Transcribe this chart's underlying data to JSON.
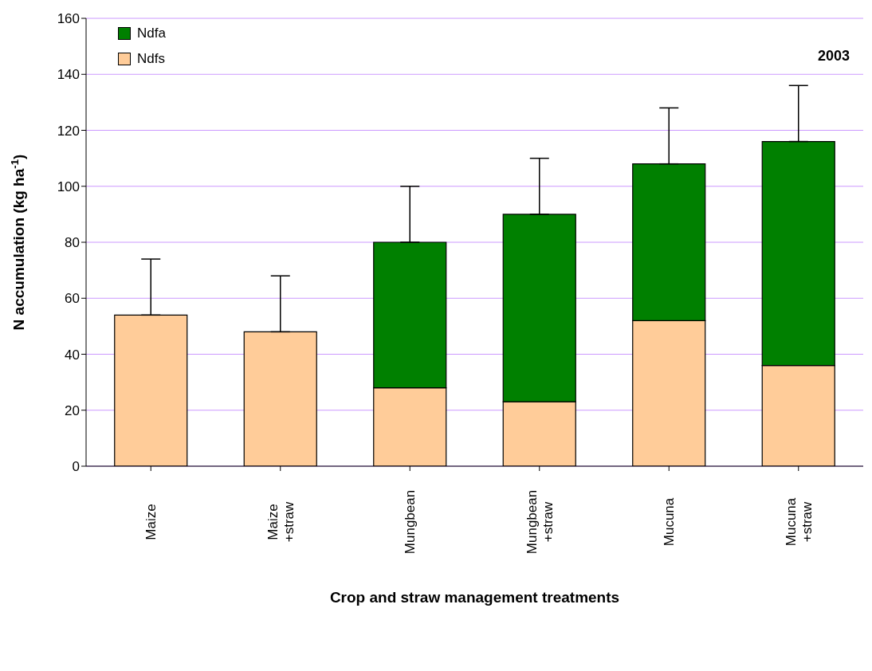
{
  "chart_data": {
    "type": "bar",
    "stacked": true,
    "xlabel": "Crop and straw management treatments",
    "ylabel": "N accumulation (kg ha$^{-1}$)",
    "categories": [
      "Maize",
      "Maize\n+straw",
      "Mungbean",
      "Mungbean\n+straw",
      "Mucuna",
      "Mucuna\n+straw"
    ],
    "series": [
      {
        "name": "Ndfs",
        "color": "#ffcc99",
        "values": [
          54,
          48,
          28,
          23,
          52,
          36
        ],
        "errors": [
          [
            54,
            74
          ],
          [
            48,
            68
          ],
          null,
          null,
          null,
          null
        ]
      },
      {
        "name": "Ndfa",
        "color": "#008000",
        "values": [
          null,
          null,
          52,
          67,
          56,
          80
        ],
        "errors": [
          null,
          null,
          [
            80,
            100
          ],
          [
            90,
            110
          ],
          [
            108,
            128
          ],
          [
            116,
            136
          ]
        ]
      }
    ],
    "ylim": [
      0,
      160
    ],
    "yticks": [
      0,
      20,
      40,
      60,
      80,
      100,
      120,
      140,
      160
    ],
    "grid": "y",
    "legend": "top left",
    "annotations": [
      "2003"
    ]
  }
}
